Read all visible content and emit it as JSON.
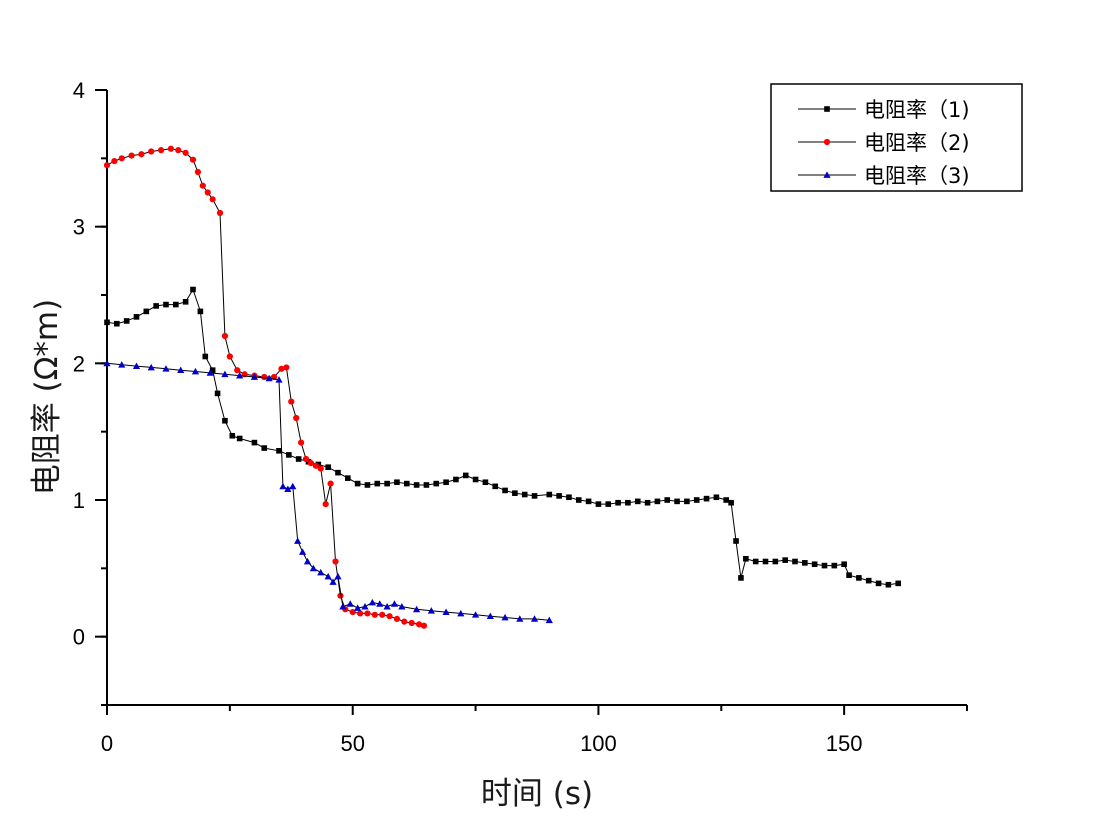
{
  "chart_data": {
    "type": "line",
    "title": "",
    "xlabel": "时间 (s)",
    "ylabel": "电阻率 (Ω*m)",
    "xlim": [
      0,
      175
    ],
    "ylim": [
      -0.5,
      4
    ],
    "xticks": [
      0,
      50,
      100,
      150
    ],
    "xtick_labels": [
      "0",
      "50",
      "100",
      "150"
    ],
    "yticks": [
      0,
      1,
      2,
      3,
      4
    ],
    "ytick_labels": [
      "0",
      "1",
      "2",
      "3",
      "4"
    ],
    "grid": false,
    "legend_position": "top-right",
    "series": [
      {
        "name": "电阻率（1)",
        "color": "#000000",
        "marker": "square",
        "points": [
          [
            0,
            2.3
          ],
          [
            2,
            2.29
          ],
          [
            4,
            2.31
          ],
          [
            6,
            2.34
          ],
          [
            8,
            2.38
          ],
          [
            10,
            2.42
          ],
          [
            12,
            2.43
          ],
          [
            14,
            2.43
          ],
          [
            16,
            2.45
          ],
          [
            17.5,
            2.54
          ],
          [
            19,
            2.38
          ],
          [
            20,
            2.05
          ],
          [
            21.5,
            1.95
          ],
          [
            22.5,
            1.78
          ],
          [
            24,
            1.58
          ],
          [
            25.5,
            1.47
          ],
          [
            27,
            1.45
          ],
          [
            30,
            1.42
          ],
          [
            32,
            1.38
          ],
          [
            35,
            1.36
          ],
          [
            37,
            1.33
          ],
          [
            39,
            1.3
          ],
          [
            41,
            1.28
          ],
          [
            43,
            1.26
          ],
          [
            45,
            1.24
          ],
          [
            47,
            1.2
          ],
          [
            49,
            1.16
          ],
          [
            51,
            1.12
          ],
          [
            53,
            1.11
          ],
          [
            55,
            1.12
          ],
          [
            57,
            1.12
          ],
          [
            59,
            1.13
          ],
          [
            61,
            1.12
          ],
          [
            63,
            1.11
          ],
          [
            65,
            1.11
          ],
          [
            67,
            1.12
          ],
          [
            69,
            1.13
          ],
          [
            71,
            1.15
          ],
          [
            73,
            1.18
          ],
          [
            75,
            1.15
          ],
          [
            77,
            1.13
          ],
          [
            79,
            1.1
          ],
          [
            81,
            1.07
          ],
          [
            83,
            1.05
          ],
          [
            85,
            1.04
          ],
          [
            87,
            1.03
          ],
          [
            90,
            1.04
          ],
          [
            92,
            1.03
          ],
          [
            94,
            1.02
          ],
          [
            96,
            1.0
          ],
          [
            98,
            0.99
          ],
          [
            100,
            0.97
          ],
          [
            102,
            0.97
          ],
          [
            104,
            0.98
          ],
          [
            106,
            0.98
          ],
          [
            108,
            0.99
          ],
          [
            110,
            0.98
          ],
          [
            112,
            0.99
          ],
          [
            114,
            1.0
          ],
          [
            116,
            0.99
          ],
          [
            118,
            0.99
          ],
          [
            120,
            1.0
          ],
          [
            122,
            1.01
          ],
          [
            124,
            1.02
          ],
          [
            126,
            1.0
          ],
          [
            127,
            0.98
          ],
          [
            128,
            0.7
          ],
          [
            129,
            0.43
          ],
          [
            130,
            0.57
          ],
          [
            132,
            0.55
          ],
          [
            134,
            0.55
          ],
          [
            136,
            0.55
          ],
          [
            138,
            0.56
          ],
          [
            140,
            0.55
          ],
          [
            142,
            0.54
          ],
          [
            144,
            0.53
          ],
          [
            146,
            0.52
          ],
          [
            148,
            0.52
          ],
          [
            150,
            0.53
          ],
          [
            151,
            0.45
          ],
          [
            153,
            0.43
          ],
          [
            155,
            0.41
          ],
          [
            157,
            0.39
          ],
          [
            159,
            0.38
          ],
          [
            161,
            0.39
          ]
        ]
      },
      {
        "name": "电阻率（2)",
        "color": "#ff0000",
        "marker": "circle",
        "points": [
          [
            0,
            3.45
          ],
          [
            1.5,
            3.48
          ],
          [
            3,
            3.5
          ],
          [
            5,
            3.52
          ],
          [
            7,
            3.53
          ],
          [
            9,
            3.55
          ],
          [
            11,
            3.56
          ],
          [
            13,
            3.57
          ],
          [
            14.5,
            3.56
          ],
          [
            16,
            3.54
          ],
          [
            17.5,
            3.49
          ],
          [
            18.5,
            3.4
          ],
          [
            19.5,
            3.3
          ],
          [
            20.5,
            3.25
          ],
          [
            21.5,
            3.2
          ],
          [
            23,
            3.1
          ],
          [
            24,
            2.2
          ],
          [
            25,
            2.05
          ],
          [
            26.5,
            1.95
          ],
          [
            28,
            1.92
          ],
          [
            30,
            1.91
          ],
          [
            32,
            1.9
          ],
          [
            34,
            1.9
          ],
          [
            35.5,
            1.96
          ],
          [
            36.5,
            1.97
          ],
          [
            37.5,
            1.72
          ],
          [
            38.5,
            1.6
          ],
          [
            39.5,
            1.42
          ],
          [
            40.5,
            1.3
          ],
          [
            41.5,
            1.27
          ],
          [
            42.5,
            1.25
          ],
          [
            43.5,
            1.23
          ],
          [
            44.5,
            0.97
          ],
          [
            45.5,
            1.12
          ],
          [
            46.5,
            0.55
          ],
          [
            47.5,
            0.3
          ],
          [
            48.5,
            0.2
          ],
          [
            50,
            0.18
          ],
          [
            51.5,
            0.17
          ],
          [
            53,
            0.17
          ],
          [
            54.5,
            0.16
          ],
          [
            56,
            0.16
          ],
          [
            57.5,
            0.15
          ],
          [
            59,
            0.13
          ],
          [
            60.5,
            0.11
          ],
          [
            62,
            0.1
          ],
          [
            63.5,
            0.09
          ],
          [
            64.5,
            0.08
          ]
        ]
      },
      {
        "name": "电阻率（3)",
        "color": "#0000cc",
        "marker": "triangle",
        "points": [
          [
            0,
            2.0
          ],
          [
            3,
            1.99
          ],
          [
            6,
            1.98
          ],
          [
            9,
            1.97
          ],
          [
            12,
            1.96
          ],
          [
            15,
            1.95
          ],
          [
            18,
            1.94
          ],
          [
            21,
            1.93
          ],
          [
            24,
            1.92
          ],
          [
            27,
            1.91
          ],
          [
            30,
            1.9
          ],
          [
            33,
            1.89
          ],
          [
            35,
            1.88
          ],
          [
            35.8,
            1.1
          ],
          [
            36.8,
            1.08
          ],
          [
            37.8,
            1.1
          ],
          [
            38.8,
            0.7
          ],
          [
            39.8,
            0.62
          ],
          [
            40.8,
            0.55
          ],
          [
            42,
            0.5
          ],
          [
            43.5,
            0.47
          ],
          [
            45,
            0.44
          ],
          [
            46,
            0.4
          ],
          [
            47,
            0.44
          ],
          [
            48,
            0.22
          ],
          [
            49.5,
            0.24
          ],
          [
            51,
            0.21
          ],
          [
            52.5,
            0.22
          ],
          [
            54,
            0.25
          ],
          [
            55.5,
            0.24
          ],
          [
            57,
            0.22
          ],
          [
            58.5,
            0.24
          ],
          [
            60,
            0.22
          ],
          [
            63,
            0.2
          ],
          [
            66,
            0.19
          ],
          [
            69,
            0.18
          ],
          [
            72,
            0.17
          ],
          [
            75,
            0.16
          ],
          [
            78,
            0.15
          ],
          [
            81,
            0.14
          ],
          [
            84,
            0.13
          ],
          [
            87,
            0.13
          ],
          [
            90,
            0.12
          ]
        ]
      }
    ]
  }
}
